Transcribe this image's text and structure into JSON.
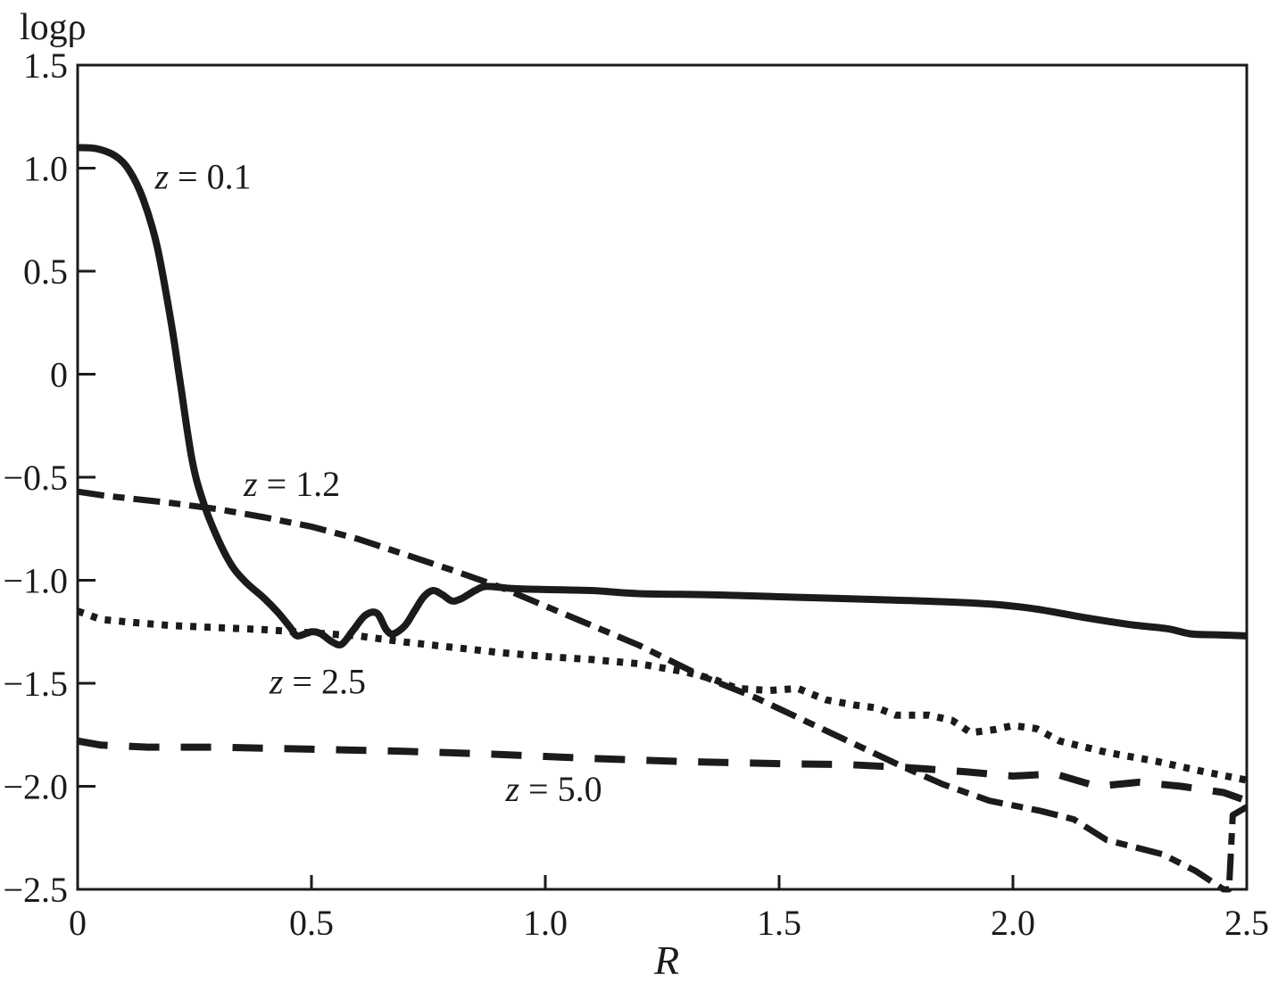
{
  "figure": {
    "background": "#ffffff",
    "ink_color": "#1b1b1b"
  },
  "chart_data": {
    "type": "line",
    "title": "",
    "xlabel": "R",
    "ylabel": "logρ",
    "xlim": [
      0,
      2.5
    ],
    "ylim": [
      -2.5,
      1.5
    ],
    "grid": false,
    "legend": "inline curve labels (no legend box)",
    "xticks": {
      "values": [
        0,
        0.5,
        1.0,
        1.5,
        2.0,
        2.5
      ],
      "labels": [
        "0",
        "0.5",
        "1.0",
        "1.5",
        "2.0",
        "2.5"
      ]
    },
    "yticks": {
      "values": [
        1.5,
        1.0,
        0.5,
        0,
        -0.5,
        -1.0,
        -1.5,
        -2.0,
        -2.5
      ],
      "labels": [
        "1.5",
        "1.0",
        "0.5",
        "0",
        "−0.5",
        "−1.0",
        "−1.5",
        "−2.0",
        "−2.5"
      ]
    },
    "series": [
      {
        "name": "z = 0.1",
        "line_style": "solid",
        "smooth": true,
        "label": {
          "text": "z = 0.1",
          "x": 0.165,
          "y": 0.96
        },
        "points": [
          [
            0,
            1.1
          ],
          [
            0.04,
            1.095
          ],
          [
            0.08,
            1.06
          ],
          [
            0.11,
            0.99
          ],
          [
            0.14,
            0.85
          ],
          [
            0.17,
            0.62
          ],
          [
            0.2,
            0.25
          ],
          [
            0.22,
            -0.05
          ],
          [
            0.245,
            -0.42
          ],
          [
            0.27,
            -0.63
          ],
          [
            0.3,
            -0.8
          ],
          [
            0.33,
            -0.93
          ],
          [
            0.36,
            -1.01
          ],
          [
            0.4,
            -1.09
          ],
          [
            0.43,
            -1.16
          ],
          [
            0.455,
            -1.23
          ],
          [
            0.47,
            -1.27
          ],
          [
            0.5,
            -1.25
          ],
          [
            0.52,
            -1.26
          ],
          [
            0.545,
            -1.3
          ],
          [
            0.565,
            -1.31
          ],
          [
            0.59,
            -1.24
          ],
          [
            0.615,
            -1.17
          ],
          [
            0.64,
            -1.16
          ],
          [
            0.66,
            -1.24
          ],
          [
            0.675,
            -1.26
          ],
          [
            0.7,
            -1.22
          ],
          [
            0.72,
            -1.15
          ],
          [
            0.74,
            -1.08
          ],
          [
            0.76,
            -1.05
          ],
          [
            0.78,
            -1.07
          ],
          [
            0.8,
            -1.1
          ],
          [
            0.82,
            -1.09
          ],
          [
            0.85,
            -1.05
          ],
          [
            0.875,
            -1.03
          ],
          [
            0.93,
            -1.04
          ],
          [
            1.0,
            -1.045
          ],
          [
            1.1,
            -1.05
          ],
          [
            1.2,
            -1.065
          ],
          [
            1.35,
            -1.07
          ],
          [
            1.5,
            -1.08
          ],
          [
            1.65,
            -1.09
          ],
          [
            1.8,
            -1.1
          ],
          [
            1.95,
            -1.115
          ],
          [
            2.05,
            -1.14
          ],
          [
            2.15,
            -1.18
          ],
          [
            2.25,
            -1.215
          ],
          [
            2.33,
            -1.235
          ],
          [
            2.38,
            -1.26
          ],
          [
            2.44,
            -1.265
          ],
          [
            2.5,
            -1.27
          ]
        ]
      },
      {
        "name": "z = 1.2",
        "line_style": "dashdot",
        "smooth": false,
        "label": {
          "text": "z = 1.2",
          "x": 0.355,
          "y": -0.53
        },
        "points": [
          [
            0,
            -0.57
          ],
          [
            0.06,
            -0.59
          ],
          [
            0.12,
            -0.605
          ],
          [
            0.2,
            -0.625
          ],
          [
            0.3,
            -0.655
          ],
          [
            0.4,
            -0.695
          ],
          [
            0.5,
            -0.74
          ],
          [
            0.6,
            -0.8
          ],
          [
            0.7,
            -0.875
          ],
          [
            0.8,
            -0.95
          ],
          [
            0.9,
            -1.03
          ],
          [
            1.0,
            -1.125
          ],
          [
            1.1,
            -1.22
          ],
          [
            1.2,
            -1.315
          ],
          [
            1.33,
            -1.46
          ],
          [
            1.45,
            -1.57
          ],
          [
            1.6,
            -1.73
          ],
          [
            1.76,
            -1.9
          ],
          [
            1.85,
            -1.99
          ],
          [
            1.95,
            -2.07
          ],
          [
            2.06,
            -2.12
          ],
          [
            2.13,
            -2.16
          ],
          [
            2.2,
            -2.26
          ],
          [
            2.32,
            -2.33
          ],
          [
            2.39,
            -2.41
          ],
          [
            2.45,
            -2.5
          ],
          [
            2.462,
            -2.5
          ],
          [
            2.47,
            -2.14
          ],
          [
            2.5,
            -2.1
          ]
        ]
      },
      {
        "name": "z = 2.5",
        "line_style": "dotted",
        "smooth": false,
        "label": {
          "text": "z = 2.5",
          "x": 0.41,
          "y": -1.49
        },
        "points": [
          [
            0,
            -1.15
          ],
          [
            0.05,
            -1.19
          ],
          [
            0.12,
            -1.205
          ],
          [
            0.2,
            -1.22
          ],
          [
            0.3,
            -1.23
          ],
          [
            0.4,
            -1.24
          ],
          [
            0.5,
            -1.255
          ],
          [
            0.6,
            -1.27
          ],
          [
            0.7,
            -1.3
          ],
          [
            0.8,
            -1.325
          ],
          [
            0.9,
            -1.35
          ],
          [
            1.0,
            -1.37
          ],
          [
            1.1,
            -1.385
          ],
          [
            1.2,
            -1.405
          ],
          [
            1.3,
            -1.445
          ],
          [
            1.36,
            -1.48
          ],
          [
            1.41,
            -1.525
          ],
          [
            1.48,
            -1.535
          ],
          [
            1.54,
            -1.525
          ],
          [
            1.6,
            -1.58
          ],
          [
            1.66,
            -1.605
          ],
          [
            1.71,
            -1.62
          ],
          [
            1.75,
            -1.655
          ],
          [
            1.82,
            -1.655
          ],
          [
            1.87,
            -1.68
          ],
          [
            1.91,
            -1.74
          ],
          [
            1.96,
            -1.725
          ],
          [
            2.0,
            -1.705
          ],
          [
            2.05,
            -1.72
          ],
          [
            2.1,
            -1.78
          ],
          [
            2.2,
            -1.835
          ],
          [
            2.31,
            -1.88
          ],
          [
            2.4,
            -1.925
          ],
          [
            2.5,
            -1.97
          ]
        ]
      },
      {
        "name": "z = 5.0",
        "line_style": "dashed",
        "smooth": false,
        "label": {
          "text": "z = 5.0",
          "x": 0.915,
          "y": -2.01
        },
        "points": [
          [
            0,
            -1.78
          ],
          [
            0.05,
            -1.8
          ],
          [
            0.15,
            -1.81
          ],
          [
            0.3,
            -1.81
          ],
          [
            0.5,
            -1.82
          ],
          [
            0.7,
            -1.83
          ],
          [
            0.9,
            -1.845
          ],
          [
            1.1,
            -1.865
          ],
          [
            1.3,
            -1.88
          ],
          [
            1.5,
            -1.89
          ],
          [
            1.65,
            -1.895
          ],
          [
            1.78,
            -1.91
          ],
          [
            1.9,
            -1.93
          ],
          [
            2.0,
            -1.95
          ],
          [
            2.09,
            -1.94
          ],
          [
            2.18,
            -2.0
          ],
          [
            2.27,
            -1.98
          ],
          [
            2.36,
            -2.0
          ],
          [
            2.45,
            -2.03
          ],
          [
            2.5,
            -2.07
          ]
        ]
      }
    ]
  }
}
